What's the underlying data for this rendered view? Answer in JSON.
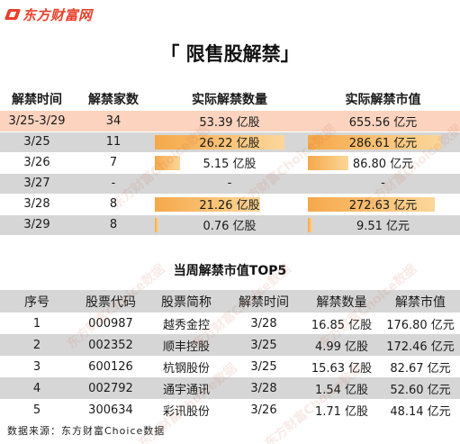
{
  "brand": {
    "name": "东方财富网",
    "logo_icon": "eastmoney-logo-icon",
    "color": "#e8402c"
  },
  "title": "「 限售股解禁」",
  "table1": {
    "headers": [
      "解禁时间",
      "解禁家数",
      "实际解禁数量",
      "实际解禁市值"
    ],
    "rows": [
      {
        "date": "3/25-3/29",
        "count": "34",
        "shares": "53.39 亿股",
        "value": "655.56 亿元",
        "shares_num": 53.39,
        "value_num": 655.56
      },
      {
        "date": "3/25",
        "count": "11",
        "shares": "26.22 亿股",
        "value": "286.61 亿元",
        "shares_num": 26.22,
        "value_num": 286.61
      },
      {
        "date": "3/26",
        "count": "7",
        "shares": "5.15 亿股",
        "value": "86.80 亿元",
        "shares_num": 5.15,
        "value_num": 86.8
      },
      {
        "date": "3/27",
        "count": "-",
        "shares": "-",
        "value": "-",
        "shares_num": 0,
        "value_num": 0
      },
      {
        "date": "3/28",
        "count": "8",
        "shares": "21.26 亿股",
        "value": "272.63 亿元",
        "shares_num": 21.26,
        "value_num": 272.63
      },
      {
        "date": "3/29",
        "count": "8",
        "shares": "0.76 亿股",
        "value": "9.51 亿元",
        "shares_num": 0.76,
        "value_num": 9.51
      }
    ],
    "bar_color": "#f6a84a"
  },
  "subtitle": "当周解禁市值TOP5",
  "table2": {
    "headers": [
      "序号",
      "股票代码",
      "股票简称",
      "解禁时间",
      "解禁数量",
      "解禁市值"
    ],
    "rows": [
      {
        "rank": "1",
        "code": "000987",
        "name": "越秀金控",
        "date": "3/28",
        "shares": "16.85 亿股",
        "value": "176.80 亿元"
      },
      {
        "rank": "2",
        "code": "002352",
        "name": "顺丰控股",
        "date": "3/25",
        "shares": "4.99 亿股",
        "value": "172.46 亿元"
      },
      {
        "rank": "3",
        "code": "600126",
        "name": "杭钢股份",
        "date": "3/25",
        "shares": "15.63 亿股",
        "value": "82.67 亿元"
      },
      {
        "rank": "4",
        "code": "002792",
        "name": "通宇通讯",
        "date": "3/28",
        "shares": "1.54 亿股",
        "value": "52.60 亿元"
      },
      {
        "rank": "5",
        "code": "300634",
        "name": "彩讯股份",
        "date": "3/26",
        "shares": "1.71 亿股",
        "value": "48.14 亿元"
      }
    ]
  },
  "source": "数据来源：东方财富Choice数据",
  "watermark": "东方财富Choice数据"
}
